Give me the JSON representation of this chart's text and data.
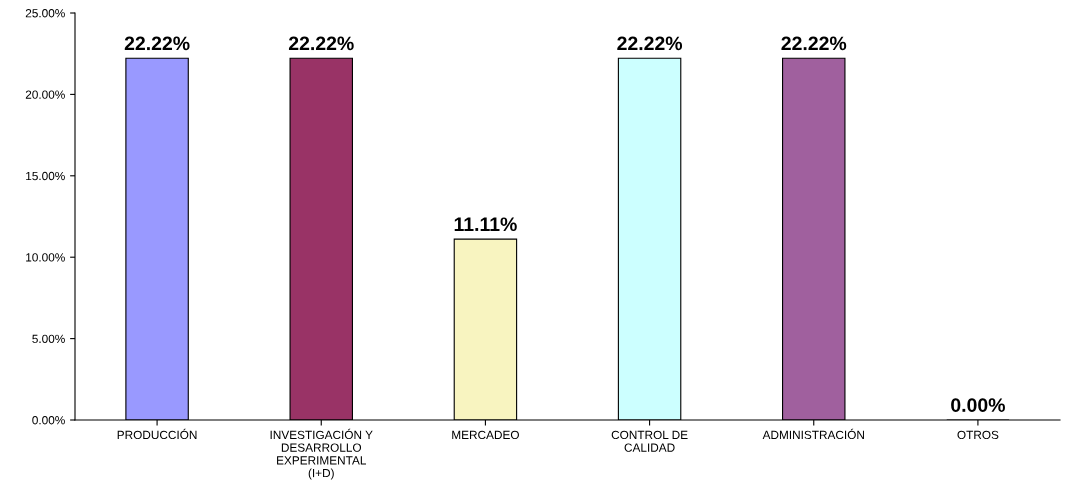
{
  "chart_data": {
    "type": "bar",
    "categories": [
      "PRODUCCIÓN",
      "INVESTIGACIÓN Y\nDESARROLLO\nEXPERIMENTAL\n(I+D)",
      "MERCADEO",
      "CONTROL DE\nCALIDAD",
      "ADMINISTRACIÓN",
      "OTROS"
    ],
    "values": [
      22.22,
      22.22,
      11.11,
      22.22,
      22.22,
      0
    ],
    "colors": [
      "#9999ff",
      "#993366",
      "#f8f4c0",
      "#ccffff",
      "#a0609e",
      "#808080"
    ],
    "value_labels": [
      "22.22%",
      "22.22%",
      "11.11%",
      "22.22%",
      "22.22%",
      "0.00%"
    ],
    "ylim": [
      0,
      25
    ],
    "yticks": [
      {
        "value": 0,
        "label": "0.00%"
      },
      {
        "value": 5,
        "label": "5.00%"
      },
      {
        "value": 10,
        "label": "10.00%"
      },
      {
        "value": 15,
        "label": "15.00%"
      },
      {
        "value": 20,
        "label": "20.00%"
      },
      {
        "value": 25,
        "label": "25.00%"
      }
    ],
    "grid": false,
    "legend": false
  }
}
